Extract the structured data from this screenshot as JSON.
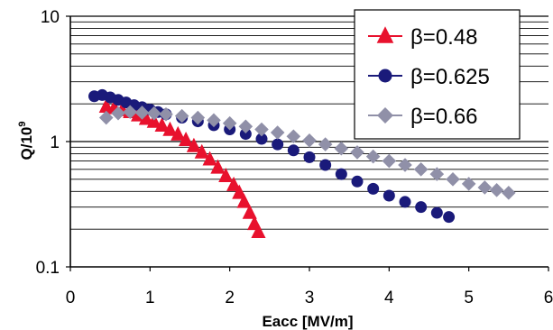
{
  "chart_data": {
    "type": "scatter",
    "title": "",
    "xlabel": "Eacc [MV/m]",
    "ylabel": "Q/10",
    "ylabel_exponent": "9",
    "xlim": [
      0,
      6
    ],
    "ylim": [
      0.1,
      10
    ],
    "yscale": "log",
    "x_ticks": [
      "0",
      "1",
      "2",
      "3",
      "4",
      "5",
      "6"
    ],
    "y_ticks": [
      "0.1",
      "1",
      "10"
    ],
    "grid": "horizontal minor and major lines",
    "legend_position": "top-right",
    "series": [
      {
        "name": "β=0.48",
        "marker": "triangle",
        "color": "#e8112d",
        "points": [
          [
            0.45,
            1.9
          ],
          [
            0.55,
            1.85
          ],
          [
            0.65,
            1.78
          ],
          [
            0.75,
            1.72
          ],
          [
            0.85,
            1.62
          ],
          [
            0.95,
            1.52
          ],
          [
            1.05,
            1.44
          ],
          [
            1.15,
            1.34
          ],
          [
            1.25,
            1.24
          ],
          [
            1.35,
            1.14
          ],
          [
            1.45,
            1.03
          ],
          [
            1.55,
            0.92
          ],
          [
            1.65,
            0.82
          ],
          [
            1.75,
            0.72
          ],
          [
            1.85,
            0.62
          ],
          [
            1.95,
            0.53
          ],
          [
            2.05,
            0.45
          ],
          [
            2.12,
            0.39
          ],
          [
            2.18,
            0.33
          ],
          [
            2.25,
            0.27
          ],
          [
            2.31,
            0.22
          ],
          [
            2.36,
            0.19
          ]
        ]
      },
      {
        "name": "β=0.625",
        "marker": "circle",
        "color": "#1a1a7a",
        "points": [
          [
            0.3,
            2.3
          ],
          [
            0.4,
            2.35
          ],
          [
            0.5,
            2.25
          ],
          [
            0.6,
            2.15
          ],
          [
            0.7,
            2.05
          ],
          [
            0.8,
            1.95
          ],
          [
            0.9,
            1.88
          ],
          [
            1.0,
            1.8
          ],
          [
            1.1,
            1.72
          ],
          [
            1.2,
            1.65
          ],
          [
            1.4,
            1.55
          ],
          [
            1.6,
            1.45
          ],
          [
            1.8,
            1.35
          ],
          [
            2.0,
            1.25
          ],
          [
            2.2,
            1.15
          ],
          [
            2.4,
            1.05
          ],
          [
            2.6,
            0.95
          ],
          [
            2.8,
            0.85
          ],
          [
            3.0,
            0.75
          ],
          [
            3.2,
            0.65
          ],
          [
            3.4,
            0.55
          ],
          [
            3.6,
            0.48
          ],
          [
            3.8,
            0.42
          ],
          [
            4.0,
            0.37
          ],
          [
            4.2,
            0.33
          ],
          [
            4.4,
            0.3
          ],
          [
            4.6,
            0.27
          ],
          [
            4.75,
            0.25
          ]
        ]
      },
      {
        "name": "β=0.66",
        "marker": "diamond",
        "color": "#9090a8",
        "points": [
          [
            0.45,
            1.55
          ],
          [
            0.6,
            1.68
          ],
          [
            0.75,
            1.72
          ],
          [
            0.9,
            1.7
          ],
          [
            1.05,
            1.68
          ],
          [
            1.2,
            1.65
          ],
          [
            1.4,
            1.6
          ],
          [
            1.6,
            1.55
          ],
          [
            1.8,
            1.48
          ],
          [
            2.0,
            1.4
          ],
          [
            2.2,
            1.32
          ],
          [
            2.4,
            1.25
          ],
          [
            2.6,
            1.18
          ],
          [
            2.8,
            1.1
          ],
          [
            3.0,
            1.02
          ],
          [
            3.2,
            0.95
          ],
          [
            3.4,
            0.88
          ],
          [
            3.6,
            0.82
          ],
          [
            3.8,
            0.76
          ],
          [
            4.0,
            0.7
          ],
          [
            4.2,
            0.65
          ],
          [
            4.4,
            0.6
          ],
          [
            4.6,
            0.55
          ],
          [
            4.8,
            0.5
          ],
          [
            5.0,
            0.46
          ],
          [
            5.2,
            0.43
          ],
          [
            5.35,
            0.41
          ],
          [
            5.5,
            0.39
          ]
        ]
      }
    ]
  }
}
